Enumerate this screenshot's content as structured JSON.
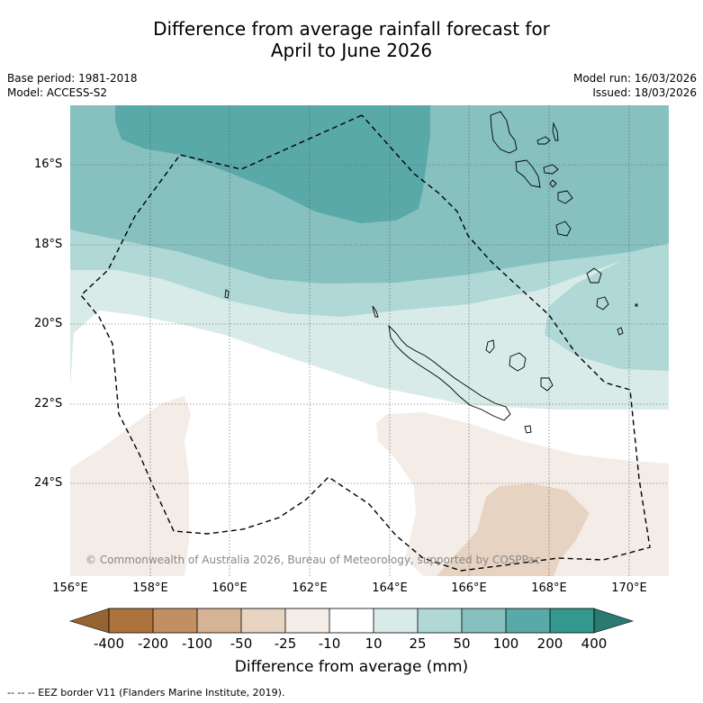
{
  "title": {
    "line1": "Difference from average rainfall forecast for",
    "line2": "April to June 2026"
  },
  "meta": {
    "base_period": "Base period: 1981-2018",
    "model": "Model: ACCESS-S2",
    "model_run": "Model run: 16/03/2026",
    "issued": "Issued: 18/03/2026"
  },
  "map": {
    "latitude_labels": [
      "16°S",
      "18°S",
      "20°S",
      "22°S",
      "24°S"
    ],
    "longitude_labels": [
      "156°E",
      "158°E",
      "160°E",
      "162°E",
      "164°E",
      "166°E",
      "168°E",
      "170°E"
    ],
    "copyright": "© Commonwealth of Australia 2026, Bureau of Meteorology, supported by COSPPac",
    "colors": {
      "wet_400": "#33998f",
      "wet_200": "#5aa9a9",
      "wet_100": "#86c1c0",
      "wet_50": "#b0d8d6",
      "wet_25": "#d8ebe8",
      "neutral": "#ffffff",
      "dry_25": "#f4ece6",
      "dry_50": "#e7d3c1",
      "dry_100": "#d5b394",
      "dry_200": "#c28f63",
      "dry_400": "#ad733d",
      "dry_extreme": "#966333",
      "wet_extreme": "#2a7a72"
    }
  },
  "colorbar": {
    "ticks": [
      "-400",
      "-200",
      "-100",
      "-50",
      "-25",
      "-10",
      "10",
      "25",
      "50",
      "100",
      "200",
      "400"
    ],
    "label": "Difference from average (mm)"
  },
  "footnote": "--  --  -- EEZ border V11 (Flanders Marine Institute, 2019)."
}
